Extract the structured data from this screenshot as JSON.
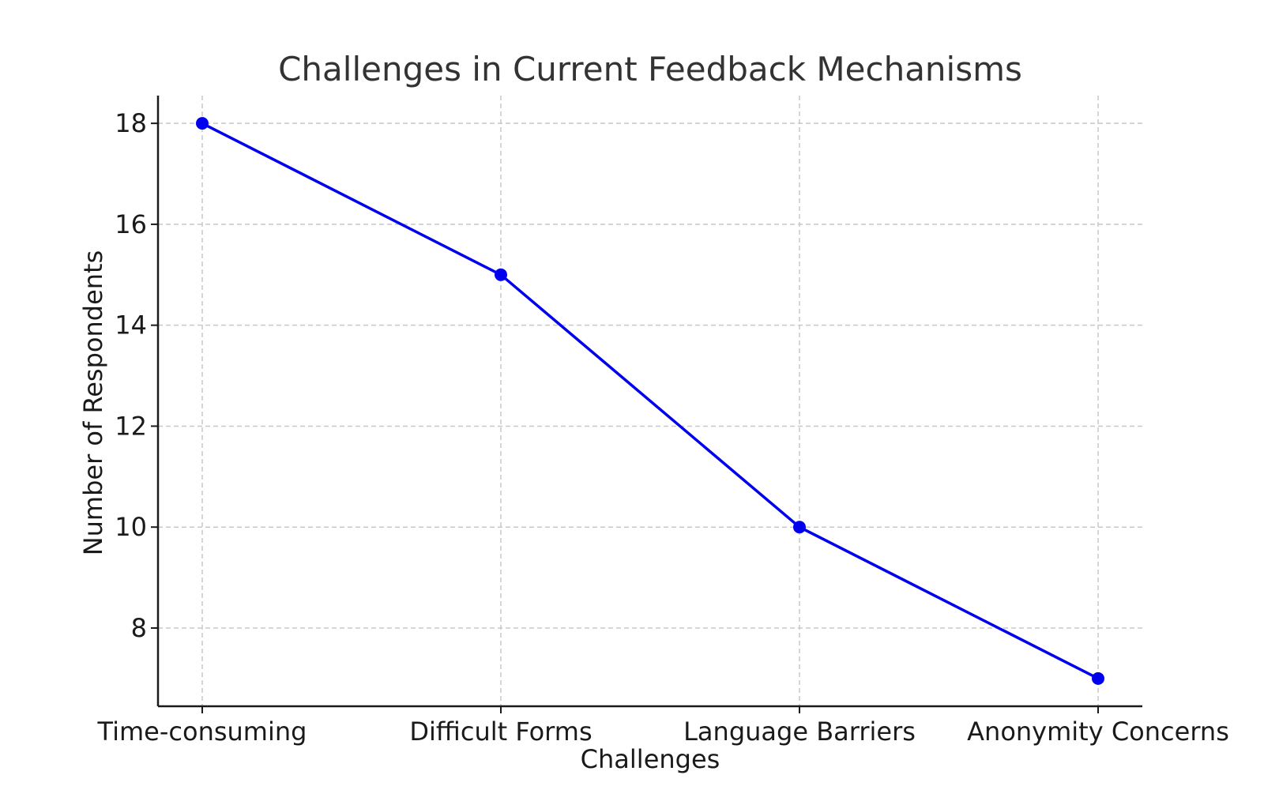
{
  "chart_data": {
    "type": "line",
    "title": "Challenges in Current Feedback Mechanisms",
    "xlabel": "Challenges",
    "ylabel": "Number of Respondents",
    "categories": [
      "Time-consuming",
      "Difficult Forms",
      "Language Barriers",
      "Anonymity Concerns"
    ],
    "series": [
      {
        "values": [
          18,
          15,
          10,
          7
        ],
        "color": "#0000ee",
        "marker": "circle"
      }
    ],
    "yticks": [
      8,
      10,
      12,
      14,
      16,
      18
    ],
    "ylim": [
      6.45,
      18.55
    ],
    "grid": true,
    "legend": "none",
    "colors": {
      "line": "#0000ee",
      "grid": "#c8c8c8",
      "axis": "#1a1a1a",
      "title": "#333333"
    }
  }
}
